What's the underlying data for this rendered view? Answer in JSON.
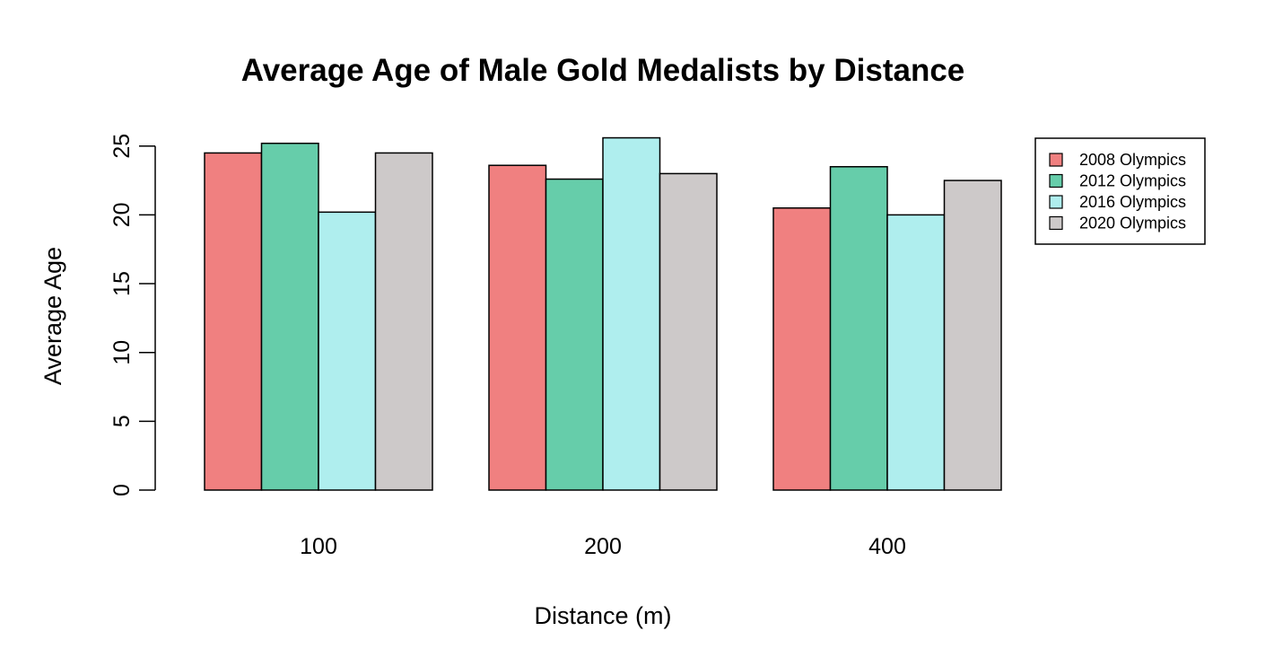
{
  "chart_data": {
    "type": "bar",
    "title": "Average Age of Male Gold Medalists by Distance",
    "xlabel": "Distance (m)",
    "ylabel": "Average Age",
    "categories": [
      "100",
      "200",
      "400"
    ],
    "series": [
      {
        "name": "2008 Olympics",
        "color": "#F08080",
        "values": [
          24.5,
          23.6,
          20.5
        ]
      },
      {
        "name": "2012 Olympics",
        "color": "#66CDAA",
        "values": [
          25.2,
          22.6,
          23.5
        ]
      },
      {
        "name": "2016 Olympics",
        "color": "#AFEEEE",
        "values": [
          20.2,
          25.6,
          20.0
        ]
      },
      {
        "name": "2020 Olympics",
        "color": "#CDC9C9",
        "values": [
          24.5,
          23.0,
          22.5
        ]
      }
    ],
    "ylim": [
      0,
      25
    ],
    "yticks": [
      0,
      5,
      10,
      15,
      20,
      25
    ],
    "grid": false,
    "legend_position": "top-right"
  }
}
